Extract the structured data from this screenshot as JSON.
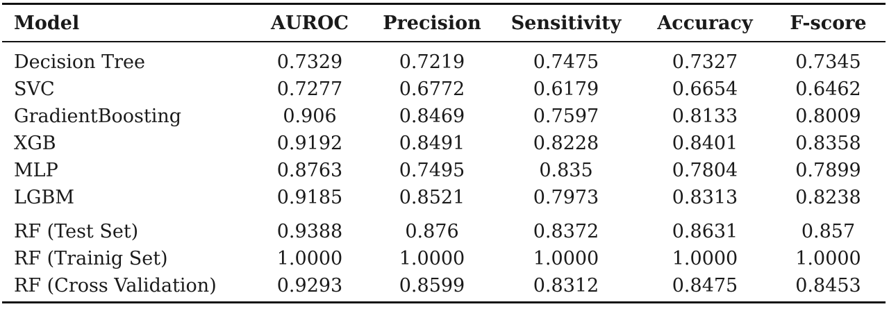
{
  "table": {
    "headers": [
      "Model",
      "AUROC",
      "Precision",
      "Sensitivity",
      "Accuracy",
      "F-score"
    ],
    "group1": [
      {
        "model": "Decision Tree",
        "auroc": "0.7329",
        "precision": "0.7219",
        "sensitivity": "0.7475",
        "accuracy": "0.7327",
        "fscore": "0.7345"
      },
      {
        "model": "SVC",
        "auroc": "0.7277",
        "precision": "0.6772",
        "sensitivity": "0.6179",
        "accuracy": "0.6654",
        "fscore": "0.6462"
      },
      {
        "model": "GradientBoosting",
        "auroc": "0.906",
        "precision": "0.8469",
        "sensitivity": "0.7597",
        "accuracy": "0.8133",
        "fscore": "0.8009"
      },
      {
        "model": "XGB",
        "auroc": "0.9192",
        "precision": "0.8491",
        "sensitivity": "0.8228",
        "accuracy": "0.8401",
        "fscore": "0.8358"
      },
      {
        "model": "MLP",
        "auroc": "0.8763",
        "precision": "0.7495",
        "sensitivity": "0.835",
        "accuracy": "0.7804",
        "fscore": "0.7899"
      },
      {
        "model": "LGBM",
        "auroc": "0.9185",
        "precision": "0.8521",
        "sensitivity": "0.7973",
        "accuracy": "0.8313",
        "fscore": "0.8238"
      }
    ],
    "group2": [
      {
        "model": "RF (Test Set)",
        "auroc": "0.9388",
        "precision": "0.876",
        "sensitivity": "0.8372",
        "accuracy": "0.8631",
        "fscore": "0.857"
      },
      {
        "model": "RF (Trainig Set)",
        "auroc": "1.0000",
        "precision": "1.0000",
        "sensitivity": "1.0000",
        "accuracy": "1.0000",
        "fscore": "1.0000"
      },
      {
        "model": "RF (Cross Validation)",
        "auroc": "0.9293",
        "precision": "0.8599",
        "sensitivity": "0.8312",
        "accuracy": "0.8475",
        "fscore": "0.8453"
      }
    ]
  }
}
